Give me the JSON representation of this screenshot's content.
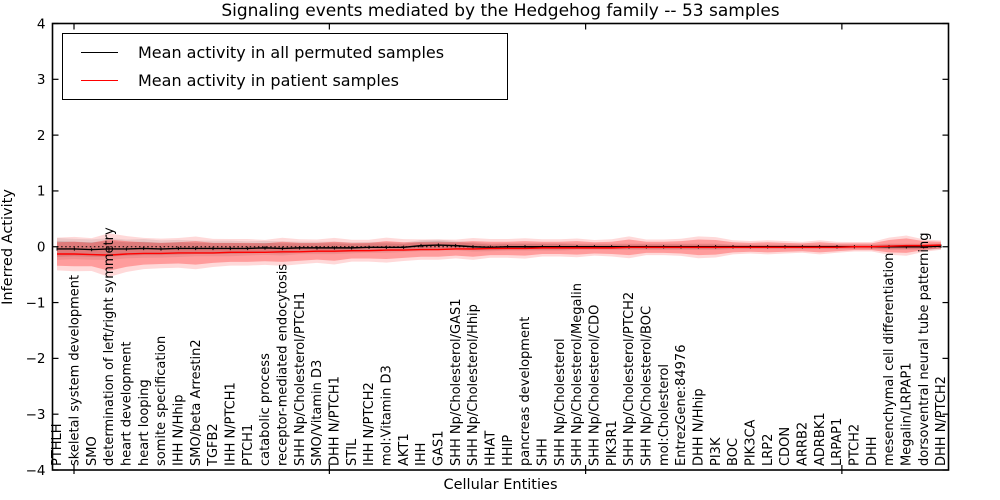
{
  "chart_data": {
    "type": "line",
    "title": "Signaling events mediated by the Hedgehog family -- 53 samples",
    "xlabel": "Cellular Entities",
    "ylabel": "Inferred Activity",
    "ylim": [
      -4,
      4
    ],
    "ytick_labels": [
      "4",
      "3",
      "2",
      "1",
      "0",
      "−1",
      "−2",
      "−3",
      "−4"
    ],
    "yticks": [
      4,
      3,
      2,
      1,
      0,
      -1,
      -2,
      -3,
      -4
    ],
    "grid": false,
    "legend_position": "upper left",
    "zero_reference_line": 0,
    "colors": {
      "permuted": "#000000",
      "patient": "#ff0000",
      "permuted_band": "#999999",
      "patient_band": "#ff0000"
    },
    "categories": [
      "PTHLH",
      "skeletal system development",
      "SMO",
      "determination of left/right symmetry",
      "heart development",
      "heart looping",
      "somite specification",
      "IHH N/Hhip",
      "SMO/beta Arrestin2",
      "TGFB2",
      "IHH N/PTCH1",
      "PTCH1",
      "catabolic process",
      "receptor-mediated endocytosis",
      "SHH Np/Cholesterol/PTCH1",
      "SMO/Vitamin D3",
      "DHH N/PTCH1",
      "STIL",
      "IHH N/PTCH2",
      "mol:Vitamin D3",
      "AKT1",
      "IHH",
      "GAS1",
      "SHH Np/Cholesterol/GAS1",
      "SHH Np/Cholesterol/Hhip",
      "HHAT",
      "HHIP",
      "pancreas development",
      "SHH",
      "SHH Np/Cholesterol",
      "SHH Np/Cholesterol/Megalin",
      "SHH Np/Cholesterol/CDO",
      "PIK3R1",
      "SHH Np/Cholesterol/PTCH2",
      "SHH Np/Cholesterol/BOC",
      "mol:Cholesterol",
      "EntrezGene:84976",
      "DHH N/Hhip",
      "PI3K",
      "BOC",
      "PIK3CA",
      "LRP2",
      "CDON",
      "ARRB2",
      "ADRBK1",
      "LRPAP1",
      "PTCH2",
      "DHH",
      "mesenchymal cell differentiation",
      "Megalin/LRPAP1",
      "dorsoventral neural tube patterning",
      "DHH N/PTCH2"
    ],
    "series": [
      {
        "name": "Mean activity in all permuted samples",
        "color": "#000000",
        "values": [
          -0.04,
          -0.04,
          -0.05,
          -0.04,
          -0.04,
          -0.03,
          -0.04,
          -0.03,
          -0.03,
          -0.03,
          -0.03,
          -0.03,
          -0.02,
          -0.03,
          -0.02,
          -0.02,
          -0.02,
          -0.02,
          -0.01,
          -0.01,
          -0.01,
          0.02,
          0.03,
          0.02,
          0.0,
          -0.01,
          0.0,
          0.0,
          0.0,
          0.0,
          0.0,
          0.0,
          0.0,
          0.0,
          0.0,
          0.0,
          0.0,
          0.0,
          0.0,
          0.0,
          0.0,
          0.0,
          0.0,
          0.0,
          0.0,
          0.0,
          0.0,
          0.0,
          0.0,
          0.0,
          0.0,
          0.01
        ],
        "std": [
          0.14,
          0.13,
          0.13,
          0.14,
          0.12,
          0.12,
          0.11,
          0.11,
          0.1,
          0.1,
          0.1,
          0.09,
          0.09,
          0.09,
          0.08,
          0.08,
          0.08,
          0.07,
          0.07,
          0.07,
          0.06,
          0.07,
          0.07,
          0.06,
          0.06,
          0.05,
          0.05,
          0.05,
          0.05,
          0.05,
          0.04,
          0.04,
          0.04,
          0.04,
          0.04,
          0.04,
          0.04,
          0.04,
          0.04,
          0.03,
          0.03,
          0.03,
          0.03,
          0.03,
          0.03,
          0.03,
          0.03,
          0.03,
          0.04,
          0.04,
          0.04,
          0.04
        ]
      },
      {
        "name": "Mean activity in patient samples",
        "color": "#ff0000",
        "values": [
          -0.13,
          -0.13,
          -0.14,
          -0.15,
          -0.13,
          -0.12,
          -0.12,
          -0.11,
          -0.11,
          -0.11,
          -0.1,
          -0.1,
          -0.1,
          -0.09,
          -0.09,
          -0.08,
          -0.08,
          -0.07,
          -0.07,
          -0.06,
          -0.06,
          -0.05,
          -0.05,
          -0.04,
          -0.04,
          -0.03,
          -0.03,
          -0.03,
          -0.02,
          -0.02,
          -0.02,
          -0.02,
          -0.02,
          -0.01,
          -0.01,
          -0.01,
          -0.01,
          -0.01,
          -0.01,
          -0.01,
          -0.01,
          -0.01,
          -0.01,
          -0.01,
          -0.01,
          -0.01,
          0.0,
          0.0,
          0.01,
          0.02,
          0.02,
          0.03
        ],
        "std": [
          0.21,
          0.22,
          0.21,
          0.28,
          0.23,
          0.2,
          0.19,
          0.19,
          0.21,
          0.18,
          0.17,
          0.17,
          0.16,
          0.18,
          0.16,
          0.15,
          0.17,
          0.14,
          0.14,
          0.16,
          0.14,
          0.13,
          0.13,
          0.12,
          0.14,
          0.12,
          0.12,
          0.13,
          0.11,
          0.11,
          0.12,
          0.1,
          0.11,
          0.14,
          0.1,
          0.1,
          0.11,
          0.14,
          0.13,
          0.09,
          0.08,
          0.09,
          0.08,
          0.07,
          0.09,
          0.07,
          0.06,
          0.06,
          0.11,
          0.13,
          0.08,
          0.06
        ]
      }
    ]
  }
}
